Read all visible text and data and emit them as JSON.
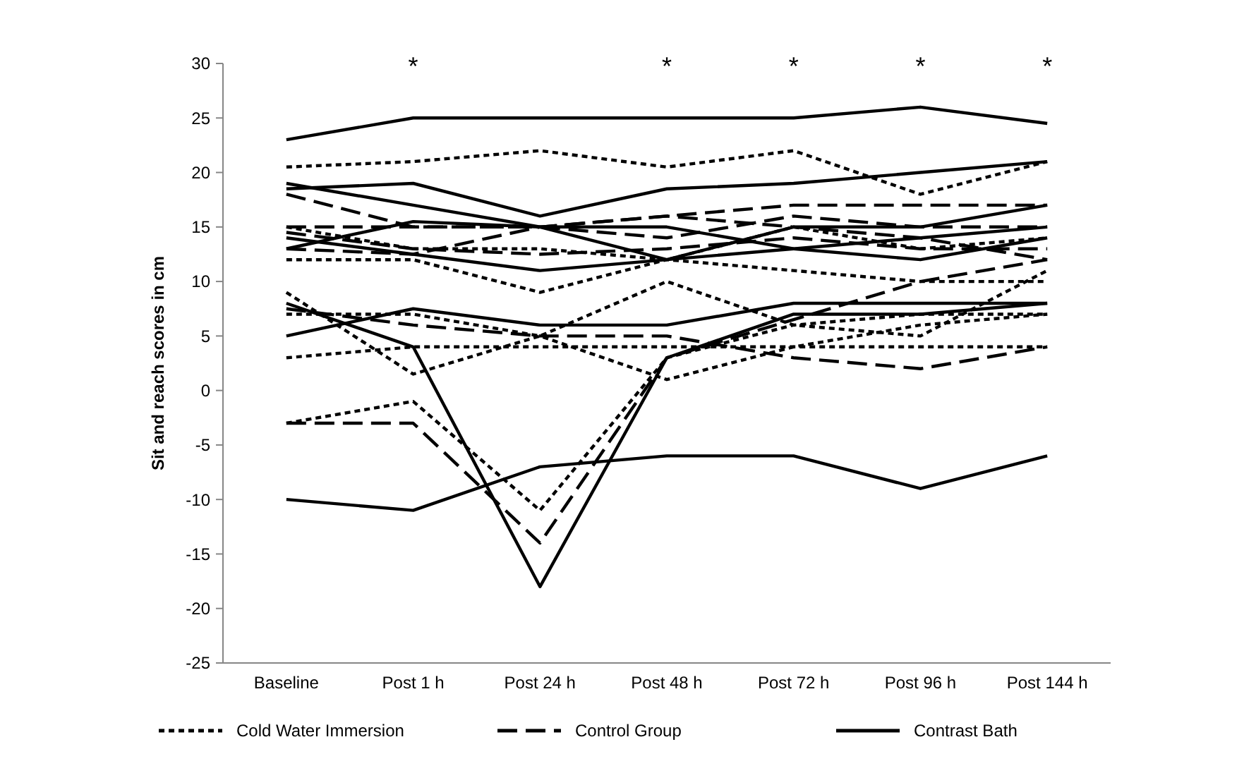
{
  "chart_data": {
    "type": "line",
    "ylabel": "Sit and reach scores in cm",
    "categories": [
      "Baseline",
      "Post 1 h",
      "Post 24 h",
      "Post 48 h",
      "Post 72 h",
      "Post 96 h",
      "Post 144 h"
    ],
    "ylim": [
      -25,
      30
    ],
    "yticks": [
      -25,
      -20,
      -15,
      -10,
      -5,
      0,
      5,
      10,
      15,
      20,
      25,
      30
    ],
    "grid": false,
    "legend": "bottom",
    "marker": "none",
    "series": [
      {
        "name": "Cold Water Immersion",
        "color": "#000000",
        "line_style": "dotted",
        "values": [
          20.5,
          21,
          22,
          20.5,
          22,
          18,
          21
        ]
      },
      {
        "color": "#000000",
        "line_style": "dotted",
        "values": [
          12,
          12,
          9,
          12,
          11,
          10,
          10
        ]
      },
      {
        "color": "#000000",
        "line_style": "dotted",
        "values": [
          7,
          7,
          5,
          10,
          6,
          5,
          11
        ]
      },
      {
        "color": "#000000",
        "line_style": "dotted",
        "values": [
          3,
          4,
          4,
          4,
          4,
          4,
          4
        ]
      },
      {
        "color": "#000000",
        "line_style": "dotted",
        "values": [
          9,
          1.5,
          5,
          1,
          4,
          6,
          7
        ]
      },
      {
        "color": "#000000",
        "line_style": "dotted",
        "values": [
          -3,
          -1,
          -11,
          3,
          6,
          7,
          7
        ]
      },
      {
        "color": "#000000",
        "line_style": "dotted",
        "values": [
          15,
          13,
          13,
          12,
          15,
          13,
          14
        ]
      },
      {
        "name": "Control Group",
        "color": "#000000",
        "line_style": "dashed",
        "values": [
          18,
          15,
          15,
          16,
          17,
          17,
          17
        ]
      },
      {
        "color": "#000000",
        "line_style": "dashed",
        "values": [
          15,
          15,
          15,
          14,
          16,
          15,
          15
        ]
      },
      {
        "color": "#000000",
        "line_style": "dashed",
        "values": [
          14.5,
          13,
          12.5,
          13,
          14,
          13,
          13
        ]
      },
      {
        "color": "#000000",
        "line_style": "dashed",
        "values": [
          7.5,
          6,
          5,
          5,
          3,
          2,
          4
        ]
      },
      {
        "color": "#000000",
        "line_style": "dashed",
        "values": [
          -3,
          -3,
          -14,
          3,
          6.5,
          10,
          12
        ]
      },
      {
        "color": "#000000",
        "line_style": "dashed",
        "values": [
          13,
          12.5,
          15,
          16,
          15,
          14,
          12
        ]
      },
      {
        "name": "Contrast Bath",
        "color": "#000000",
        "line_style": "solid",
        "values": [
          23,
          25,
          25,
          25,
          25,
          26,
          24.5
        ]
      },
      {
        "color": "#000000",
        "line_style": "solid",
        "values": [
          18.5,
          19,
          16,
          18.5,
          19,
          20,
          21
        ]
      },
      {
        "color": "#000000",
        "line_style": "solid",
        "values": [
          19,
          17,
          15,
          15,
          13,
          12,
          14
        ]
      },
      {
        "color": "#000000",
        "line_style": "solid",
        "values": [
          13,
          15.5,
          15,
          12,
          15,
          15,
          17
        ]
      },
      {
        "color": "#000000",
        "line_style": "solid",
        "values": [
          14,
          12.5,
          11,
          12,
          13,
          14,
          15
        ]
      },
      {
        "color": "#000000",
        "line_style": "solid",
        "values": [
          5,
          7.5,
          6,
          6,
          8,
          8,
          8
        ]
      },
      {
        "color": "#000000",
        "line_style": "solid",
        "values": [
          8,
          4,
          -18,
          3,
          7,
          7,
          8
        ]
      },
      {
        "color": "#000000",
        "line_style": "solid",
        "values": [
          -10,
          -11,
          -7,
          -6,
          -6,
          -9,
          -6
        ]
      }
    ],
    "annotations": [
      "*",
      "*",
      "*",
      "*",
      "*"
    ]
  }
}
